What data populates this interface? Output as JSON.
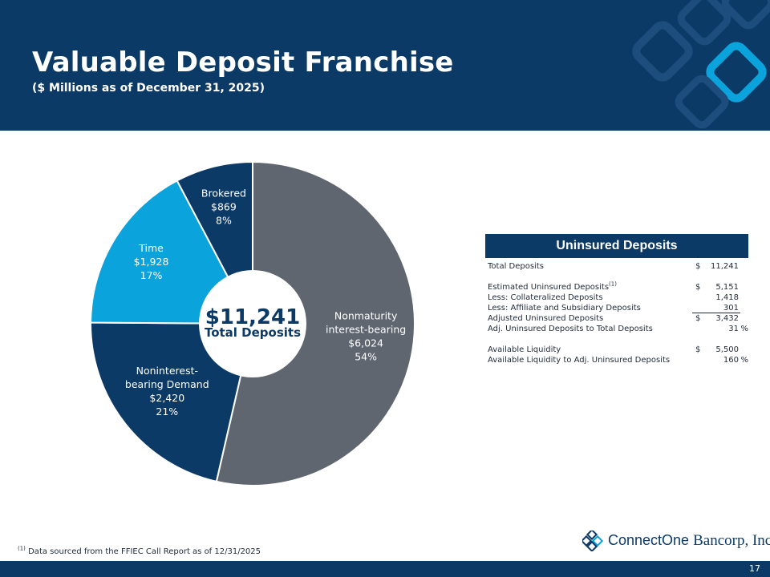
{
  "header": {
    "title": "Valuable Deposit Franchise",
    "subtitle": "($ Millions as of December 31, 2025)"
  },
  "chart_data": {
    "type": "pie",
    "center_value": "$11,241",
    "center_label": "Total Deposits",
    "slices": [
      {
        "name": "Nonmaturity interest-bearing",
        "label_lines": [
          "Nonmaturity",
          "interest-bearing"
        ],
        "value_label": "$6,024",
        "pct_label": "54%",
        "value": 6024,
        "color": "#5f6670"
      },
      {
        "name": "Noninterest-bearing Demand",
        "label_lines": [
          "Noninterest-",
          "bearing Demand"
        ],
        "value_label": "$2,420",
        "pct_label": "21%",
        "value": 2420,
        "color": "#0b3a66"
      },
      {
        "name": "Time",
        "label_lines": [
          "Time"
        ],
        "value_label": "$1,928",
        "pct_label": "17%",
        "value": 1928,
        "color": "#0aa3dc"
      },
      {
        "name": "Brokered",
        "label_lines": [
          "Brokered"
        ],
        "value_label": "$869",
        "pct_label": "8%",
        "value": 869,
        "color": "#0b3a66"
      }
    ]
  },
  "uninsured": {
    "title": "Uninsured Deposits",
    "rows": [
      {
        "label": "Total Deposits",
        "cur": "$",
        "value": "11,241",
        "pct": ""
      },
      {
        "label": "Estimated Uninsured Deposits",
        "sup": "(1)",
        "cur": "$",
        "value": "5,151",
        "pct": ""
      },
      {
        "label": "Less: Collateralized Deposits",
        "cur": "",
        "value": "1,418",
        "pct": ""
      },
      {
        "label": "Less: Affiliate and Subsidiary Deposits",
        "cur": "",
        "value": "301",
        "pct": ""
      },
      {
        "label": "Adjusted Uninsured Deposits",
        "cur": "$",
        "value": "3,432",
        "pct": ""
      },
      {
        "label": "Adj. Uninsured Deposits to Total Deposits",
        "cur": "",
        "value": "31",
        "pct": "%"
      },
      {
        "label": "Available Liquidity",
        "cur": "$",
        "value": "5,500",
        "pct": ""
      },
      {
        "label": "Available Liquidity to Adj. Uninsured Deposits",
        "cur": "",
        "value": "160",
        "pct": "%"
      }
    ]
  },
  "footnote": {
    "sup": "(1)",
    "text": "Data sourced from the FFIEC Call Report as of 12/31/2025"
  },
  "logo": {
    "name_main": "ConnectOne",
    "name_tail": "Bancorp, Inc."
  },
  "page_number": "17",
  "colors": {
    "navy": "#0b3a66",
    "gray": "#5f6670",
    "cyan": "#0aa3dc"
  }
}
